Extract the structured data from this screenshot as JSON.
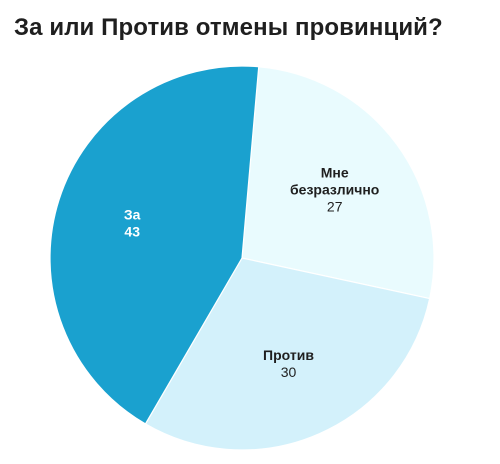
{
  "chart_data": {
    "type": "pie",
    "title": "За или Против отмены провинций?",
    "slices": [
      {
        "label": "За",
        "value": 43,
        "color": "#1aa1cf",
        "text_color": "#ffffff"
      },
      {
        "label": "Против",
        "value": 30,
        "color": "#d3f1fb",
        "text_color": "#1f1f1f"
      },
      {
        "label": "Мне безразлично",
        "label_lines": [
          "Мне",
          "безразлично"
        ],
        "value": 27,
        "color": "#e9fbfe",
        "text_color": "#1f1f1f"
      }
    ]
  }
}
